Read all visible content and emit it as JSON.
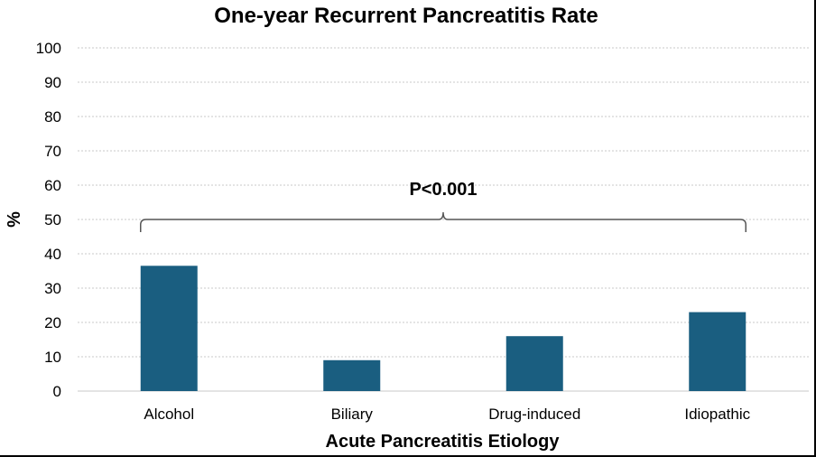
{
  "chart_data": {
    "type": "bar",
    "title": "One-year Recurrent Pancreatitis Rate",
    "xlabel": "Acute Pancreatitis Etiology",
    "ylabel": "%",
    "categories": [
      "Alcohol",
      "Biliary",
      "Drug-induced",
      "Idiopathic"
    ],
    "values": [
      36.5,
      9,
      16,
      23
    ],
    "ylim": [
      0,
      100
    ],
    "yticks": [
      "0",
      "10",
      "20",
      "30",
      "40",
      "50",
      "60",
      "70",
      "80",
      "90",
      "100"
    ],
    "grid": true,
    "bar_color": "#1a5e80",
    "annotation": {
      "text": "P<0.001",
      "type": "brace",
      "span": [
        "Alcohol",
        "Idiopathic"
      ],
      "level": 50
    }
  }
}
